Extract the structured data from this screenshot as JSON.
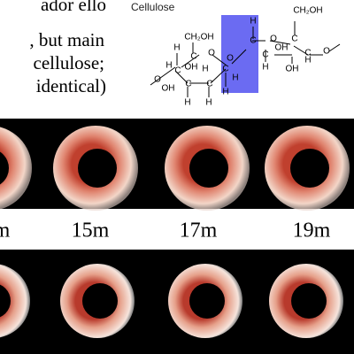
{
  "slide": {
    "text_lines": [
      "ador ello",
      ", but main",
      "cellulose;",
      "identical)"
    ],
    "molecule": {
      "title": "Cellulose",
      "atoms": [
        "CH₂OH",
        "H",
        "O",
        "C",
        "H",
        "OH",
        "C",
        "H",
        "C",
        "C",
        "OH",
        "H",
        "O",
        "O",
        "H",
        "C",
        "O",
        "CH₂OH",
        "C",
        "H",
        "OH",
        "C",
        "C",
        "H",
        "OH",
        "H",
        "O",
        "H",
        "C",
        "H"
      ]
    },
    "time_labels": [
      "m",
      "15m",
      "17m",
      "19m"
    ]
  }
}
